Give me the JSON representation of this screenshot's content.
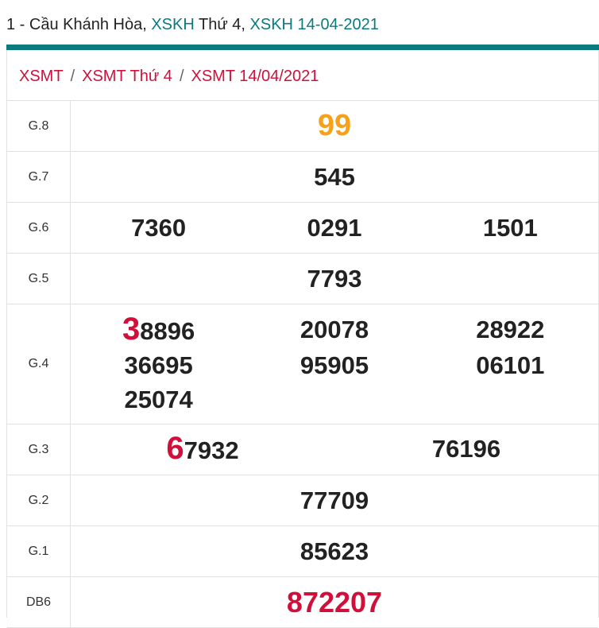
{
  "header": {
    "prefix": "1 - Cầu Khánh Hòa, ",
    "link1": "XSKH",
    "mid": " Thứ 4, ",
    "link2": "XSKH 14-04-2021"
  },
  "colors": {
    "teal": "#0a7a7f",
    "red": "#d0103a",
    "orange": "#f7a01a"
  },
  "breadcrumb": [
    "XSMT",
    "XSMT Thứ 4",
    "XSMT 14/04/2021"
  ],
  "breadcrumb_sep": "/",
  "prizes": {
    "g8": {
      "label": "G.8",
      "values": [
        "99"
      ]
    },
    "g7": {
      "label": "G.7",
      "values": [
        "545"
      ]
    },
    "g6": {
      "label": "G.6",
      "values": [
        "7360",
        "0291",
        "1501"
      ]
    },
    "g5": {
      "label": "G.5",
      "values": [
        "7793"
      ]
    },
    "g4": {
      "label": "G.4",
      "values": [
        {
          "lead": "3",
          "rest": "8896"
        },
        "20078",
        "28922",
        "36695",
        "95905",
        "06101",
        "25074"
      ]
    },
    "g3": {
      "label": "G.3",
      "values": [
        {
          "lead": "6",
          "rest": "7932"
        },
        "76196"
      ]
    },
    "g2": {
      "label": "G.2",
      "values": [
        "77709"
      ]
    },
    "g1": {
      "label": "G.1",
      "values": [
        "85623"
      ]
    },
    "db": {
      "label": "DB6",
      "values": [
        "872207"
      ]
    }
  }
}
